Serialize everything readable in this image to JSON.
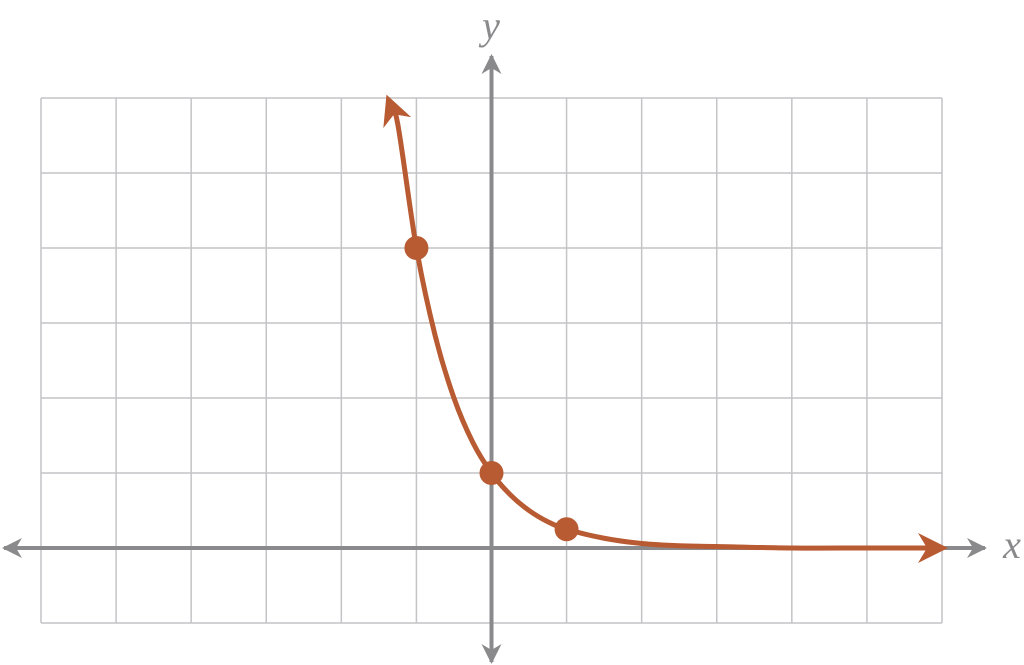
{
  "chart_data": {
    "type": "line",
    "x_label": "x",
    "y_label": "y",
    "xlim": [
      -6,
      6
    ],
    "ylim": [
      -1,
      6
    ],
    "xticks": [
      -6,
      -5,
      -4,
      -3,
      -2,
      -1,
      0,
      1,
      2,
      3,
      4,
      5,
      6
    ],
    "yticks": [
      -1,
      0,
      1,
      2,
      3,
      4,
      5,
      6
    ],
    "grid": true,
    "series": [
      {
        "color": "#b85a32",
        "x": [
          -1.37,
          -1.25,
          -1,
          -0.75,
          -0.5,
          -0.25,
          0,
          0.25,
          0.5,
          0.75,
          1,
          1.5,
          2,
          2.5,
          3,
          4,
          5,
          6
        ],
        "values": [
          5.97,
          5.66,
          4,
          2.83,
          2,
          1.41,
          1,
          0.71,
          0.5,
          0.35,
          0.25,
          0.13,
          0.06,
          0.03,
          0.02,
          0,
          0,
          0
        ],
        "arrows": true
      },
      {
        "color": "#b85a32",
        "x": [
          -1,
          0,
          1
        ],
        "values": [
          4,
          1,
          0.25
        ],
        "markers": true
      }
    ]
  }
}
